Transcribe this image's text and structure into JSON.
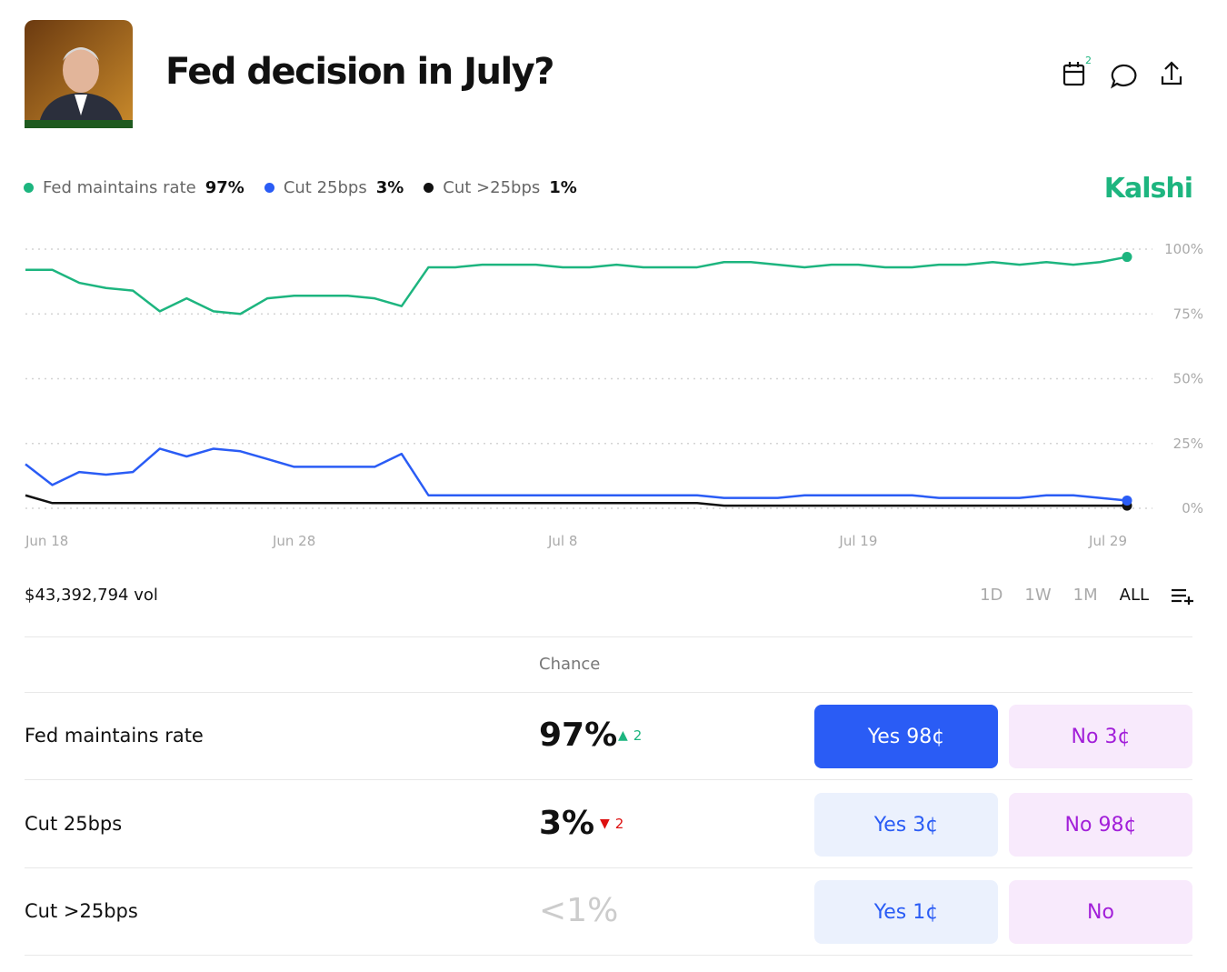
{
  "header": {
    "title": "Fed decision in July?",
    "badge": "2"
  },
  "brand": "Kalshi",
  "chart_data": {
    "type": "line",
    "x": [
      "Jun 18",
      "Jun 19",
      "Jun 20",
      "Jun 21",
      "Jun 22",
      "Jun 23",
      "Jun 24",
      "Jun 25",
      "Jun 26",
      "Jun 27",
      "Jun 28",
      "Jun 29",
      "Jun 30",
      "Jul 1",
      "Jul 2",
      "Jul 3",
      "Jul 4",
      "Jul 5",
      "Jul 6",
      "Jul 7",
      "Jul 8",
      "Jul 9",
      "Jul 10",
      "Jul 11",
      "Jul 12",
      "Jul 13",
      "Jul 14",
      "Jul 15",
      "Jul 16",
      "Jul 17",
      "Jul 18",
      "Jul 19",
      "Jul 20",
      "Jul 21",
      "Jul 22",
      "Jul 23",
      "Jul 24",
      "Jul 25",
      "Jul 26",
      "Jul 27",
      "Jul 28",
      "Jul 29"
    ],
    "series": [
      {
        "name": "Fed maintains rate",
        "color": "#1db57f",
        "last_label": "97%",
        "values": [
          92,
          92,
          87,
          85,
          84,
          76,
          81,
          76,
          75,
          81,
          82,
          82,
          82,
          81,
          78,
          93,
          93,
          94,
          94,
          94,
          93,
          93,
          94,
          93,
          93,
          93,
          95,
          95,
          94,
          93,
          94,
          94,
          93,
          93,
          94,
          94,
          95,
          94,
          95,
          94,
          95,
          97
        ]
      },
      {
        "name": "Cut 25bps",
        "color": "#2a5cf5",
        "last_label": "3%",
        "values": [
          17,
          9,
          14,
          13,
          14,
          23,
          20,
          23,
          22,
          19,
          16,
          16,
          16,
          16,
          21,
          5,
          5,
          5,
          5,
          5,
          5,
          5,
          5,
          5,
          5,
          5,
          4,
          4,
          4,
          5,
          5,
          5,
          5,
          5,
          4,
          4,
          4,
          4,
          5,
          5,
          4,
          3
        ]
      },
      {
        "name": "Cut >25bps",
        "color": "#111111",
        "last_label": "1%",
        "values": [
          5,
          2,
          2,
          2,
          2,
          2,
          2,
          2,
          2,
          2,
          2,
          2,
          2,
          2,
          2,
          2,
          2,
          2,
          2,
          2,
          2,
          2,
          2,
          2,
          2,
          2,
          1,
          1,
          1,
          1,
          1,
          1,
          1,
          1,
          1,
          1,
          1,
          1,
          1,
          1,
          1,
          1
        ]
      }
    ],
    "ylim": [
      0,
      100
    ],
    "yticks": [
      {
        "value": 0,
        "label": "0%"
      },
      {
        "value": 25,
        "label": "25%"
      },
      {
        "value": 50,
        "label": "50%"
      },
      {
        "value": 75,
        "label": "75%"
      },
      {
        "value": 100,
        "label": "100%"
      }
    ],
    "xticks": [
      "Jun 18",
      "Jun 28",
      "Jul 8",
      "Jul 19",
      "Jul 29"
    ],
    "grid": true
  },
  "volume": "$43,392,794 vol",
  "ranges": [
    "1D",
    "1W",
    "1M",
    "ALL"
  ],
  "table": {
    "header": "Chance",
    "rows": [
      {
        "name": "Fed maintains rate",
        "chance": "97%",
        "change": "2",
        "yes": "Yes 98¢",
        "no": "No 3¢"
      },
      {
        "name": "Cut 25bps",
        "chance": "3%",
        "change": "2",
        "yes": "Yes 3¢",
        "no": "No 98¢"
      },
      {
        "name": "Cut >25bps",
        "chance": "<1%",
        "yes": "Yes 1¢",
        "no": "No"
      }
    ]
  }
}
